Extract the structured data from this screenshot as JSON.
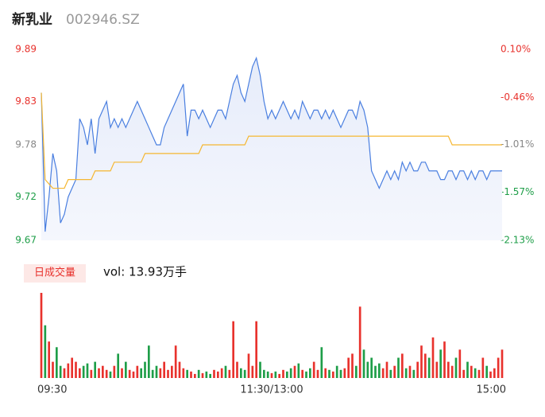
{
  "header": {
    "name": "新乳业",
    "code": "002946.SZ"
  },
  "chart_data": {
    "type": "line",
    "ylim": [
      9.67,
      9.89
    ],
    "yticks": [
      9.89,
      9.83,
      9.78,
      9.72,
      9.67
    ],
    "y2lim": [
      -2.13,
      0.1
    ],
    "y2ticks": [
      {
        "value": 0.1,
        "label": "0.10%"
      },
      {
        "value": -0.46,
        "label": "-0.46%"
      },
      {
        "value": -1.01,
        "label": "-1.01%"
      },
      {
        "value": -1.57,
        "label": "-1.57%"
      },
      {
        "value": -2.13,
        "label": "-2.13%"
      }
    ],
    "ytick_colors": [
      "#e8322d",
      "#e8322d",
      "#888888",
      "#1e9e48",
      "#1e9e48"
    ],
    "xticks": [
      {
        "value": 0,
        "label": "09:30"
      },
      {
        "value": 60,
        "label": "11:30/13:00"
      },
      {
        "value": 120,
        "label": "15:00"
      }
    ],
    "series": [
      {
        "color": "#4a7fe0",
        "values": [
          9.84,
          9.68,
          9.72,
          9.77,
          9.75,
          9.69,
          9.7,
          9.72,
          9.73,
          9.74,
          9.81,
          9.8,
          9.78,
          9.81,
          9.77,
          9.81,
          9.82,
          9.83,
          9.8,
          9.81,
          9.8,
          9.81,
          9.8,
          9.81,
          9.82,
          9.83,
          9.82,
          9.81,
          9.8,
          9.79,
          9.78,
          9.78,
          9.8,
          9.81,
          9.82,
          9.83,
          9.84,
          9.85,
          9.79,
          9.82,
          9.82,
          9.81,
          9.82,
          9.81,
          9.8,
          9.81,
          9.82,
          9.82,
          9.81,
          9.83,
          9.85,
          9.86,
          9.84,
          9.83,
          9.85,
          9.87,
          9.88,
          9.86,
          9.83,
          9.81,
          9.82,
          9.81,
          9.82,
          9.83,
          9.82,
          9.81,
          9.82,
          9.81,
          9.83,
          9.82,
          9.81,
          9.82,
          9.82,
          9.81,
          9.82,
          9.81,
          9.82,
          9.81,
          9.8,
          9.81,
          9.82,
          9.82,
          9.81,
          9.83,
          9.82,
          9.8,
          9.75,
          9.74,
          9.73,
          9.74,
          9.75,
          9.74,
          9.75,
          9.74,
          9.76,
          9.75,
          9.76,
          9.75,
          9.75,
          9.76,
          9.76,
          9.75,
          9.75,
          9.75,
          9.74,
          9.74,
          9.75,
          9.75,
          9.74,
          9.75,
          9.75,
          9.74,
          9.75,
          9.74,
          9.75,
          9.75,
          9.74,
          9.75,
          9.75,
          9.75,
          9.75
        ]
      },
      {
        "color": "#f5b731",
        "values": [
          9.84,
          9.74,
          9.735,
          9.73,
          9.73,
          9.73,
          9.73,
          9.74,
          9.74,
          9.74,
          9.74,
          9.74,
          9.74,
          9.74,
          9.75,
          9.75,
          9.75,
          9.75,
          9.75,
          9.76,
          9.76,
          9.76,
          9.76,
          9.76,
          9.76,
          9.76,
          9.76,
          9.77,
          9.77,
          9.77,
          9.77,
          9.77,
          9.77,
          9.77,
          9.77,
          9.77,
          9.77,
          9.77,
          9.77,
          9.77,
          9.77,
          9.77,
          9.78,
          9.78,
          9.78,
          9.78,
          9.78,
          9.78,
          9.78,
          9.78,
          9.78,
          9.78,
          9.78,
          9.78,
          9.79,
          9.79,
          9.79,
          9.79,
          9.79,
          9.79,
          9.79,
          9.79,
          9.79,
          9.79,
          9.79,
          9.79,
          9.79,
          9.79,
          9.79,
          9.79,
          9.79,
          9.79,
          9.79,
          9.79,
          9.79,
          9.79,
          9.79,
          9.79,
          9.79,
          9.79,
          9.79,
          9.79,
          9.79,
          9.79,
          9.79,
          9.79,
          9.79,
          9.79,
          9.79,
          9.79,
          9.79,
          9.79,
          9.79,
          9.79,
          9.79,
          9.79,
          9.79,
          9.79,
          9.79,
          9.79,
          9.79,
          9.79,
          9.79,
          9.79,
          9.79,
          9.79,
          9.79,
          9.78,
          9.78,
          9.78,
          9.78,
          9.78,
          9.78,
          9.78,
          9.78,
          9.78,
          9.78,
          9.78,
          9.78,
          9.78,
          9.78
        ]
      }
    ],
    "volume": {
      "legend": "日成交量",
      "label": "vol: 13.93万手",
      "up_color": "#e8322d",
      "down_color": "#1e9e48",
      "values": [
        105,
        65,
        45,
        20,
        38,
        15,
        12,
        18,
        25,
        20,
        12,
        15,
        18,
        10,
        20,
        12,
        15,
        10,
        8,
        15,
        30,
        12,
        20,
        10,
        8,
        15,
        12,
        20,
        40,
        10,
        15,
        12,
        20,
        10,
        15,
        40,
        20,
        12,
        10,
        8,
        5,
        10,
        6,
        8,
        5,
        10,
        8,
        12,
        15,
        10,
        70,
        20,
        12,
        10,
        30,
        15,
        70,
        20,
        10,
        8,
        6,
        8,
        5,
        10,
        8,
        12,
        15,
        18,
        10,
        8,
        12,
        20,
        10,
        38,
        12,
        10,
        8,
        15,
        10,
        12,
        25,
        30,
        15,
        88,
        35,
        20,
        25,
        15,
        18,
        12,
        20,
        10,
        15,
        25,
        30,
        12,
        15,
        10,
        20,
        40,
        30,
        25,
        50,
        20,
        35,
        45,
        20,
        15,
        25,
        35,
        10,
        20,
        15,
        12,
        10,
        25,
        15,
        8,
        12,
        25,
        35
      ]
    }
  }
}
